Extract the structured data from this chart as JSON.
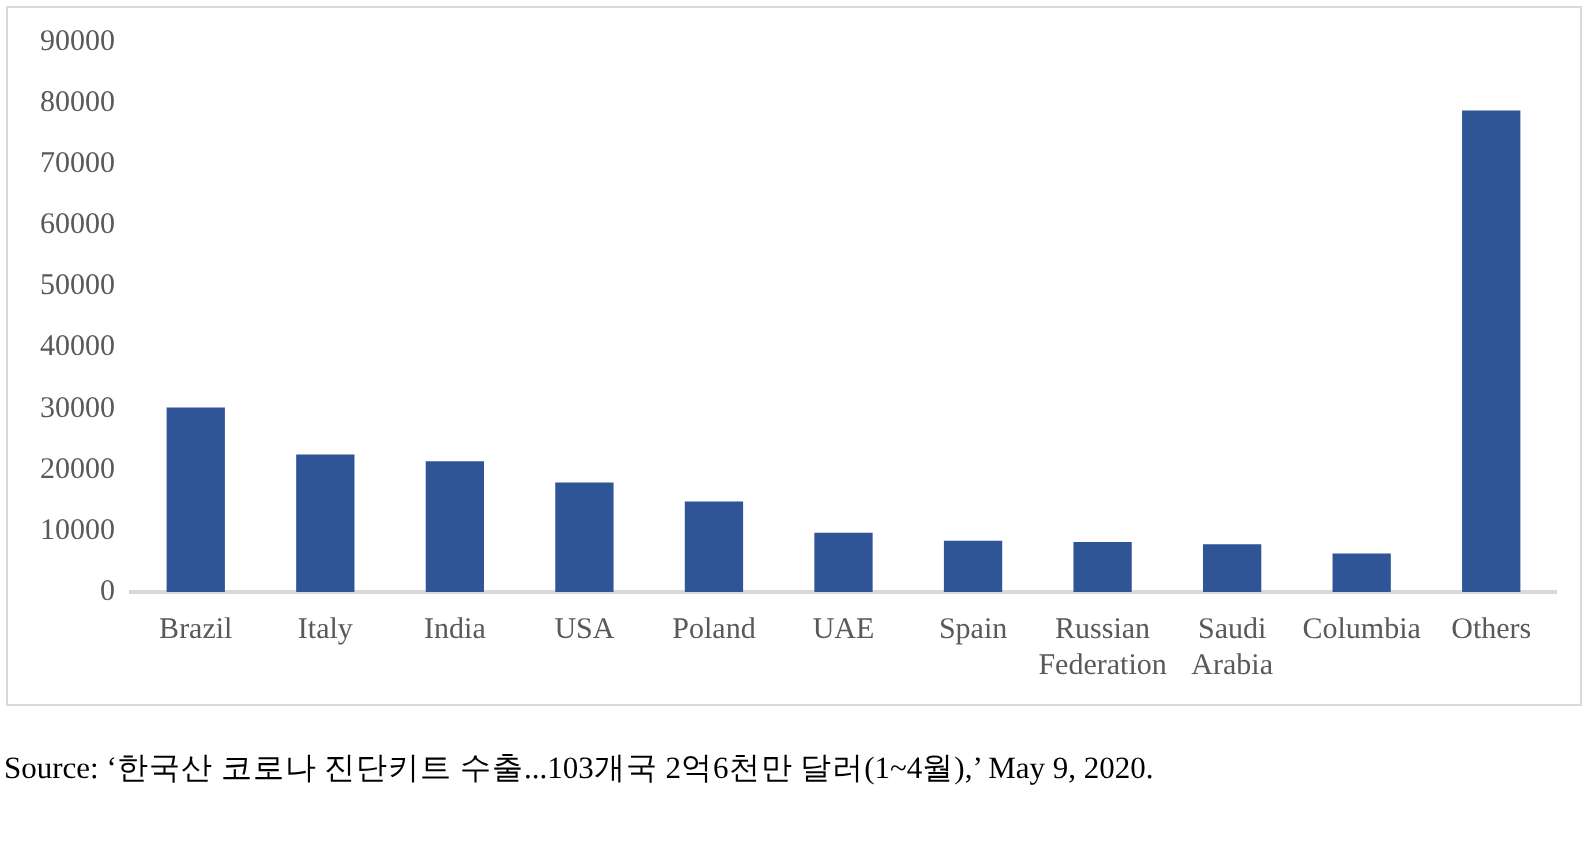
{
  "chart_data": {
    "type": "bar",
    "categories": [
      "Brazil",
      "Italy",
      "India",
      "USA",
      "Poland",
      "UAE",
      "Spain",
      "Russian Federation",
      "Saudi Arabia",
      "Columbia",
      "Others"
    ],
    "values": [
      30200,
      22500,
      21400,
      17900,
      14800,
      9700,
      8400,
      8200,
      7800,
      6300,
      78800
    ],
    "color": "#2f5597",
    "ylim": [
      0,
      90000
    ],
    "yticks": [
      0,
      10000,
      20000,
      30000,
      40000,
      50000,
      60000,
      70000,
      80000,
      90000
    ],
    "grid": false,
    "legend": false,
    "annotations": [
      "Source: ‘한국산 코로나 진단키트 수출...103개국 2억6천만 달러(1~4월),’ May 9, 2020."
    ]
  }
}
